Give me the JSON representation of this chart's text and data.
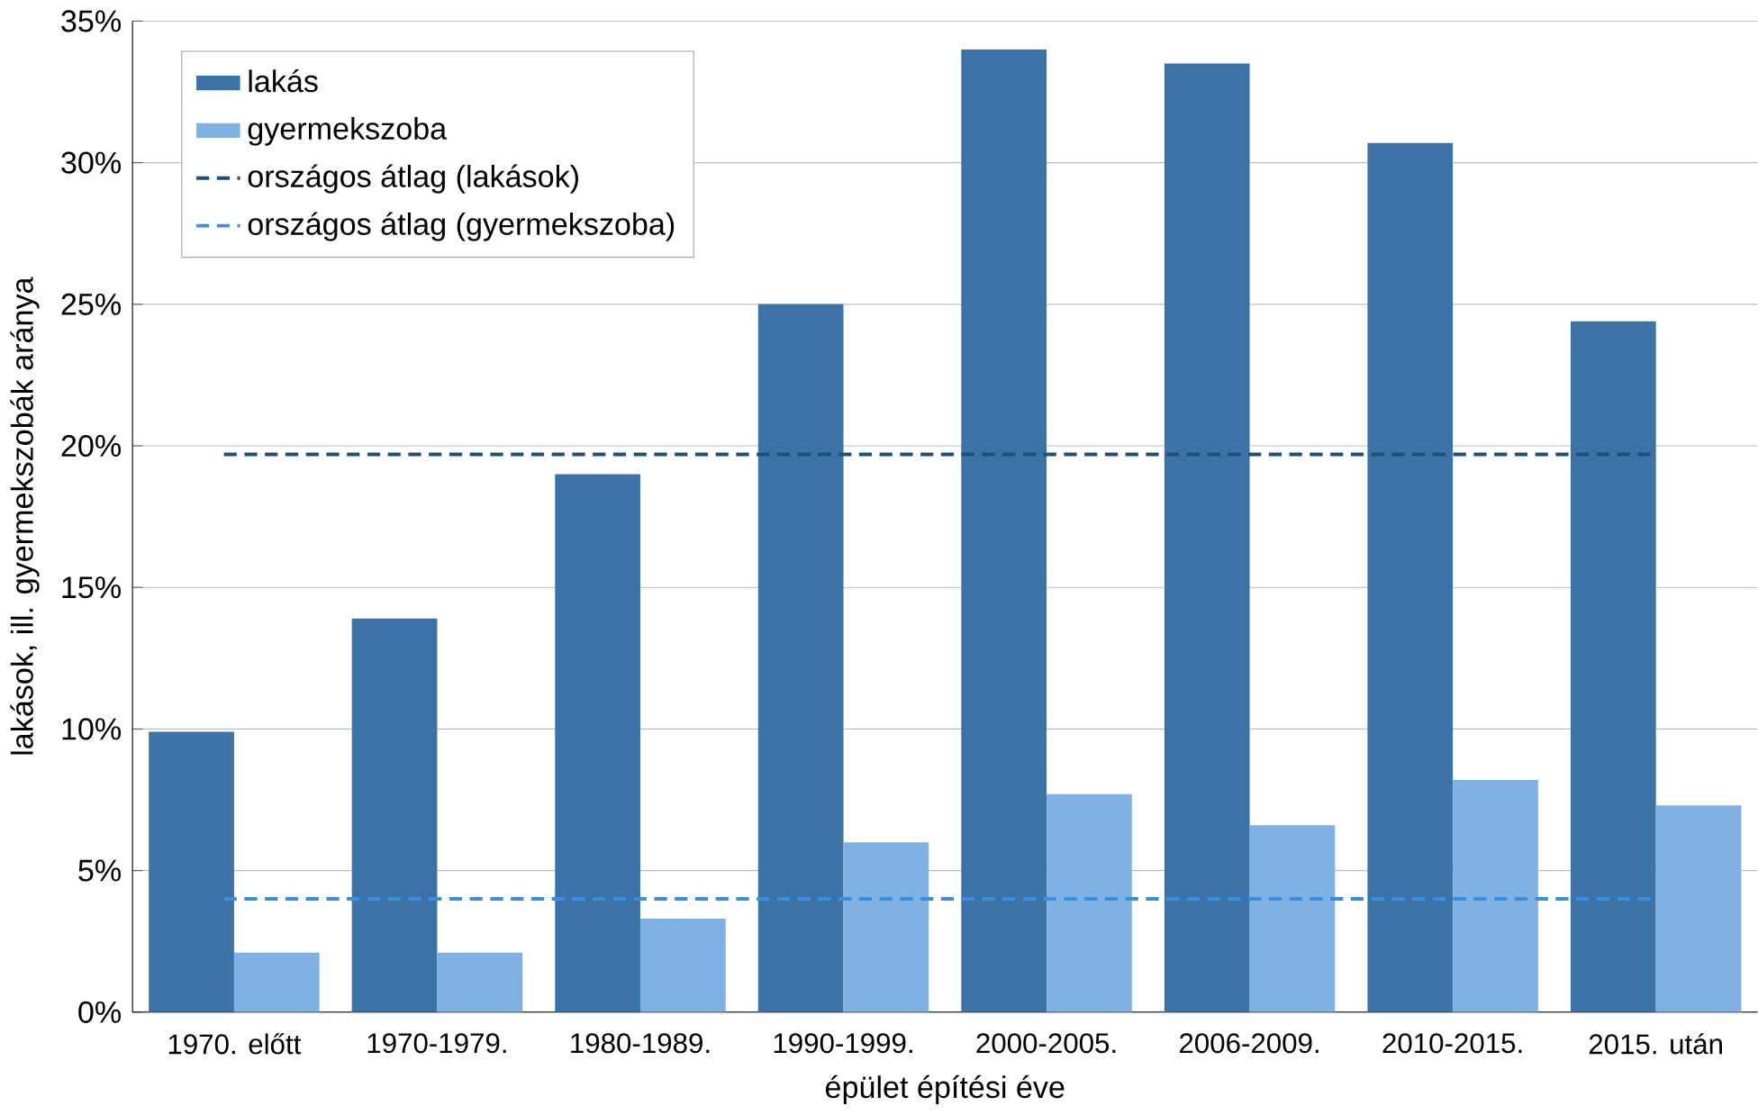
{
  "chart_data": {
    "type": "bar",
    "categories": [
      "1970. előtt",
      "1970-1979.",
      "1980-1989.",
      "1990-1999.",
      "2000-2005.",
      "2006-2009.",
      "2010-2015.",
      "2015. után"
    ],
    "series": [
      {
        "name": "lakás",
        "color": "#3b73a6",
        "values": [
          9.9,
          13.9,
          19.0,
          25.0,
          34.0,
          33.5,
          30.7,
          24.4
        ]
      },
      {
        "name": "gyermekszoba",
        "color": "#7fb1e2",
        "values": [
          2.1,
          2.1,
          3.3,
          6.0,
          7.7,
          6.6,
          8.2,
          7.3
        ]
      }
    ],
    "ref_lines": [
      {
        "axis": "y",
        "value": 19.7,
        "label": "országos átlag (lakások)",
        "color": "#1f4e79",
        "line_style": "dashed"
      },
      {
        "axis": "y",
        "value": 4.0,
        "label": "országos átlag (gyermekszoba)",
        "color": "#3a8ee0",
        "line_style": "dashed"
      }
    ],
    "xlabel": "épület építési éve",
    "ylabel": "lakások, ill. gyermekszobák aránya",
    "ylim": [
      0,
      35
    ],
    "yticks": [
      {
        "value": 0,
        "label": "0%"
      },
      {
        "value": 5,
        "label": "5%"
      },
      {
        "value": 10,
        "label": "10%"
      },
      {
        "value": 15,
        "label": "15%"
      },
      {
        "value": 20,
        "label": "20%"
      },
      {
        "value": 25,
        "label": "25%"
      },
      {
        "value": 30,
        "label": "30%"
      },
      {
        "value": 35,
        "label": "35%"
      }
    ],
    "grid": "y",
    "legend": "top left"
  }
}
